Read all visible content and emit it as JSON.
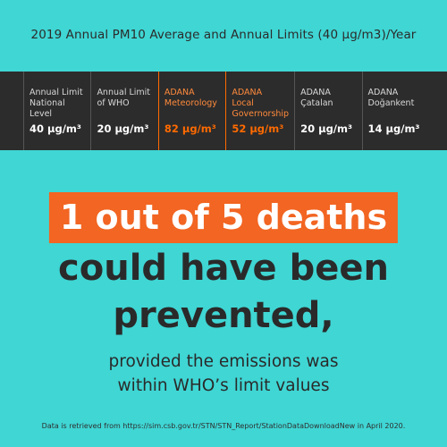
{
  "header": {
    "title": "2019 Annual PM10 Average and Annual Limits (40 μg/m3)/Year"
  },
  "stats": [
    {
      "label": "Annual Limit\nNational Level",
      "value": "40 μg/m³",
      "highlight": false
    },
    {
      "label": "Annual Limit\nof WHO",
      "value": "20 μg/m³",
      "highlight": false
    },
    {
      "label": "ADANA\nMeteorology",
      "value": "82 μg/m³",
      "highlight": true
    },
    {
      "label": "ADANA\nLocal\nGovernorship",
      "value": "52 μg/m³",
      "highlight": true
    },
    {
      "label": "ADANA\nÇatalan",
      "value": "20 μg/m³",
      "highlight": false
    },
    {
      "label": "ADANA\nDoğankent",
      "value": "14 μg/m³",
      "highlight": false
    }
  ],
  "headline": {
    "highlight": "1 out of 5 deaths",
    "line1": "could have been",
    "line2": "prevented,"
  },
  "subline": {
    "line1": "provided the emissions was",
    "line2": "within WHO’s limit values"
  },
  "footer": {
    "source": "Data is retrieved from https://sim.csb.gov.tr/STN/STN_Report/StationDataDownloadNew in April 2020."
  },
  "colors": {
    "background": "#3fd6d4",
    "band": "#2c2c2c",
    "accent": "#f26522"
  }
}
